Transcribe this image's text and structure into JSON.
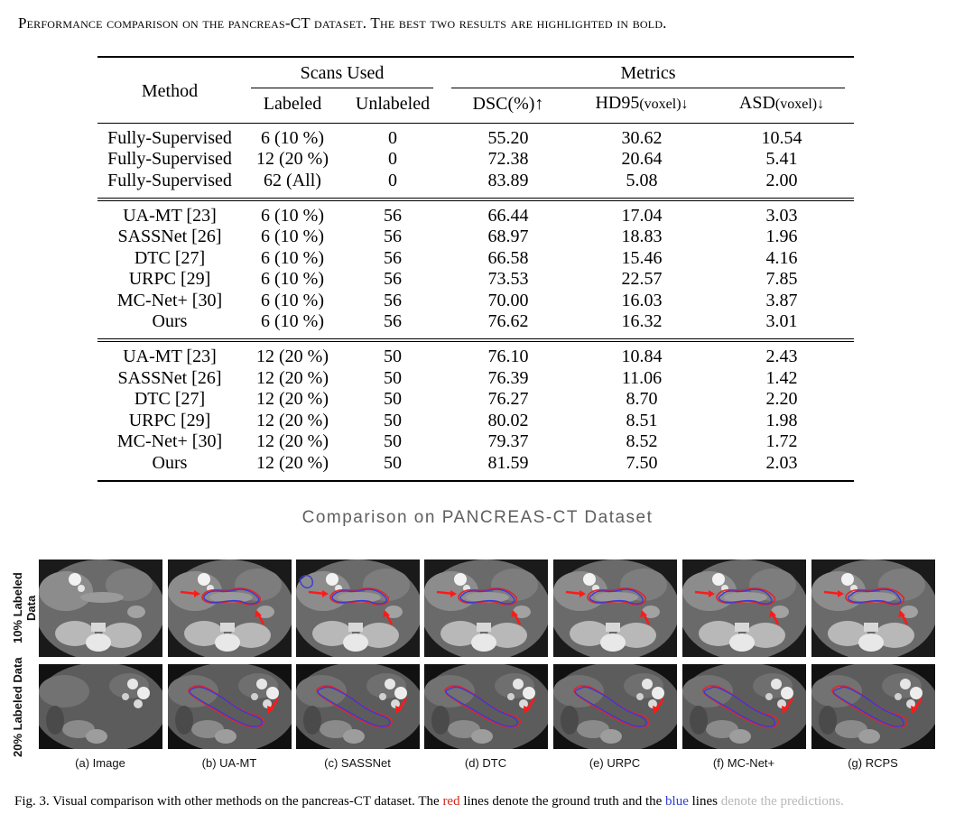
{
  "table_caption": "Performance comparison on the pancreas-CT dataset. The best two results are highlighted in bold.",
  "table": {
    "header": {
      "method": "Method",
      "scans_used": "Scans Used",
      "metrics": "Metrics",
      "labeled": "Labeled",
      "unlabeled": "Unlabeled",
      "dsc": "DSC(%)↑",
      "hd95_main": "HD95",
      "hd95_unit": "(voxel)↓",
      "asd_main": "ASD",
      "asd_unit": "(voxel)↓"
    },
    "groups": [
      [
        {
          "method": "Fully-Supervised",
          "labeled": "6 (10 %)",
          "unlabeled": "0",
          "dsc": "55.20",
          "hd95": "30.62",
          "asd": "10.54",
          "bold": []
        },
        {
          "method": "Fully-Supervised",
          "labeled": "12 (20 %)",
          "unlabeled": "0",
          "dsc": "72.38",
          "hd95": "20.64",
          "asd": "5.41",
          "bold": []
        },
        {
          "method": "Fully-Supervised",
          "labeled": "62 (All)",
          "unlabeled": "0",
          "dsc": "83.89",
          "hd95": "5.08",
          "asd": "2.00",
          "bold": []
        }
      ],
      [
        {
          "method": "UA-MT [23]",
          "labeled": "6 (10 %)",
          "unlabeled": "56",
          "dsc": "66.44",
          "hd95": "17.04",
          "asd": "3.03",
          "bold": []
        },
        {
          "method": "SASSNet [26]",
          "labeled": "6 (10 %)",
          "unlabeled": "56",
          "dsc": "68.97",
          "hd95": "18.83",
          "asd": "1.96",
          "bold": [
            "asd"
          ]
        },
        {
          "method": "DTC [27]",
          "labeled": "6 (10 %)",
          "unlabeled": "56",
          "dsc": "66.58",
          "hd95": "15.46",
          "asd": "4.16",
          "bold": [
            "hd95"
          ]
        },
        {
          "method": "URPC [29]",
          "labeled": "6 (10 %)",
          "unlabeled": "56",
          "dsc": "73.53",
          "hd95": "22.57",
          "asd": "7.85",
          "bold": [
            "dsc"
          ]
        },
        {
          "method": "MC-Net+ [30]",
          "labeled": "6 (10 %)",
          "unlabeled": "56",
          "dsc": "70.00",
          "hd95": "16.03",
          "asd": "3.87",
          "bold": [
            "hd95"
          ]
        },
        {
          "method": "Ours",
          "labeled": "6 (10 %)",
          "unlabeled": "56",
          "dsc": "76.62",
          "hd95": "16.32",
          "asd": "3.01",
          "bold": [
            "method",
            "dsc",
            "asd"
          ]
        }
      ],
      [
        {
          "method": "UA-MT [23]",
          "labeled": "12 (20 %)",
          "unlabeled": "50",
          "dsc": "76.10",
          "hd95": "10.84",
          "asd": "2.43",
          "bold": []
        },
        {
          "method": "SASSNet [26]",
          "labeled": "12 (20 %)",
          "unlabeled": "50",
          "dsc": "76.39",
          "hd95": "11.06",
          "asd": "1.42",
          "bold": [
            "asd"
          ]
        },
        {
          "method": "DTC [27]",
          "labeled": "12 (20 %)",
          "unlabeled": "50",
          "dsc": "76.27",
          "hd95": "8.70",
          "asd": "2.20",
          "bold": []
        },
        {
          "method": "URPC [29]",
          "labeled": "12 (20 %)",
          "unlabeled": "50",
          "dsc": "80.02",
          "hd95": "8.51",
          "asd": "1.98",
          "bold": [
            "dsc",
            "hd95"
          ]
        },
        {
          "method": "MC-Net+ [30]",
          "labeled": "12 (20 %)",
          "unlabeled": "50",
          "dsc": "79.37",
          "hd95": "8.52",
          "asd": "1.72",
          "bold": [
            "asd"
          ]
        },
        {
          "method": "Ours",
          "labeled": "12 (20 %)",
          "unlabeled": "50",
          "dsc": "81.59",
          "hd95": "7.50",
          "asd": "2.03",
          "bold": [
            "method",
            "dsc",
            "hd95"
          ]
        }
      ]
    ]
  },
  "section_title": "Comparison on PANCREAS-CT Dataset",
  "figure": {
    "row_labels": [
      "10% Labeled Data",
      "20% Labeled Data"
    ],
    "column_labels": [
      "(a) Image",
      "(b) UA-MT",
      "(c) SASSNet",
      "(d) DTC",
      "(e) URPC",
      "(f) MC-Net+",
      "(g) RCPS"
    ],
    "colors": {
      "ground_truth": "#e0262a",
      "prediction": "#3a39d6",
      "arrow": "#ff1a1a"
    }
  },
  "fig_caption": {
    "prefix": "Fig. 3.  Visual comparison with other methods on the pancreas-CT dataset. The ",
    "red_word": "red",
    "middle": " lines denote the ground truth and the ",
    "blue_word": "blue",
    "suffix": " lines",
    "faded_suffix": " denote the predictions."
  }
}
